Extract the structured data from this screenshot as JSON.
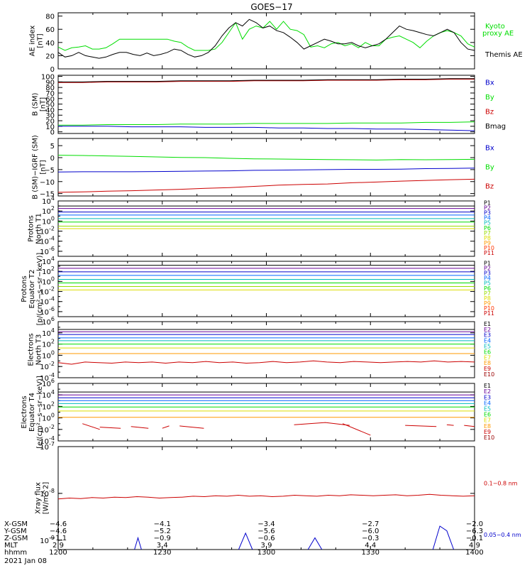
{
  "title": "GOES−17",
  "chart_data": [
    {
      "type": "line",
      "name": "ae",
      "ylabel": [
        "AE index",
        "[nT]"
      ],
      "ylim": [
        0,
        85
      ],
      "yticks": [
        0,
        20,
        40,
        60,
        80
      ],
      "series": [
        {
          "name": "Kyoto proxy AE",
          "label_lines": [
            "Kyoto",
            "proxy AE"
          ],
          "color": "#00dd00",
          "values": [
            33,
            28,
            32,
            33,
            35,
            30,
            30,
            32,
            38,
            45,
            45,
            45,
            45,
            45,
            45,
            45,
            45,
            42,
            40,
            33,
            28,
            28,
            28,
            30,
            40,
            55,
            70,
            45,
            60,
            65,
            62,
            72,
            60,
            72,
            60,
            58,
            52,
            33,
            35,
            32,
            38,
            40,
            35,
            38,
            32,
            40,
            35,
            35,
            45,
            48,
            50,
            45,
            40,
            32,
            42,
            50,
            55,
            58,
            55,
            50,
            38,
            33
          ]
        },
        {
          "name": "Themis AE",
          "label_lines": [
            "Themis AE"
          ],
          "color": "#000000",
          "values": [
            25,
            18,
            20,
            25,
            20,
            18,
            16,
            18,
            22,
            25,
            25,
            22,
            20,
            24,
            20,
            22,
            25,
            30,
            28,
            22,
            18,
            20,
            25,
            35,
            50,
            62,
            70,
            65,
            75,
            70,
            62,
            65,
            58,
            55,
            48,
            40,
            30,
            35,
            40,
            45,
            42,
            38,
            38,
            40,
            35,
            32,
            35,
            38,
            45,
            55,
            65,
            60,
            58,
            55,
            52,
            50,
            55,
            60,
            55,
            40,
            30,
            28
          ]
        }
      ]
    },
    {
      "type": "line",
      "name": "bsm",
      "ylabel": [
        "B (SM)",
        "[nT]"
      ],
      "ylim": [
        -3,
        102
      ],
      "yticks": [
        0,
        10,
        20,
        30,
        40,
        50,
        60,
        70,
        80,
        90,
        100
      ],
      "series": [
        {
          "name": "Bx",
          "color": "#0000cc",
          "values": [
            10,
            10,
            10,
            9,
            9,
            9,
            8,
            8,
            8,
            7,
            7,
            6,
            6,
            5,
            5,
            4,
            3,
            2
          ]
        },
        {
          "name": "By",
          "color": "#00dd00",
          "values": [
            12,
            12,
            13,
            13,
            13,
            14,
            14,
            14,
            15,
            15,
            15,
            15,
            16,
            16,
            16,
            17,
            17,
            18
          ]
        },
        {
          "name": "Bz",
          "color": "#cc0000",
          "values": [
            89,
            89,
            90,
            90,
            90,
            91,
            91,
            91,
            92,
            92,
            92,
            93,
            93,
            93,
            94,
            94,
            95,
            95
          ]
        },
        {
          "name": "Bmag",
          "color": "#000000",
          "values": [
            90,
            90,
            91,
            91,
            91,
            92,
            92,
            92,
            93,
            93,
            93,
            94,
            94,
            94,
            95,
            95,
            96,
            96
          ]
        }
      ]
    },
    {
      "type": "line",
      "name": "bigrf",
      "ylabel": [
        "B (SM)−IGRF (SM)",
        "[nT]"
      ],
      "ylim": [
        -16,
        8
      ],
      "yticks": [
        -15,
        -10,
        -5,
        0,
        5
      ],
      "series": [
        {
          "name": "Bx",
          "color": "#0000cc",
          "values": [
            -6.0,
            -5.9,
            -5.9,
            -5.9,
            -5.8,
            -5.7,
            -5.6,
            -5.5,
            -5.3,
            -5.2,
            -5.1,
            -5.0,
            -4.9,
            -4.9,
            -4.8,
            -4.6,
            -4.5,
            -4.4
          ]
        },
        {
          "name": "By",
          "color": "#00dd00",
          "values": [
            1.0,
            0.9,
            0.7,
            0.5,
            0.3,
            0.1,
            0.0,
            -0.3,
            -0.5,
            -0.6,
            -0.7,
            -0.8,
            -0.9,
            -1.0,
            -0.8,
            -0.9,
            -0.8,
            -0.7
          ]
        },
        {
          "name": "Bz",
          "color": "#cc0000",
          "values": [
            -14.5,
            -14.3,
            -14.0,
            -13.8,
            -13.5,
            -13.2,
            -12.8,
            -12.5,
            -12.0,
            -11.5,
            -11.2,
            -11.0,
            -10.5,
            -10.2,
            -9.8,
            -9.5,
            -9.2,
            -9.0
          ]
        }
      ]
    },
    {
      "type": "line",
      "name": "protons-t1",
      "ylabel": [
        "Protons",
        "North T1"
      ],
      "log": true,
      "ylim_exp": [
        -7,
        4
      ],
      "ytick_exps": [
        -6,
        -4,
        -2,
        0,
        2,
        4
      ],
      "series": [
        {
          "name": "P1",
          "color": "#000000",
          "exp": 3.0
        },
        {
          "name": "P2",
          "color": "#660099",
          "exp": 2.5
        },
        {
          "name": "P3",
          "color": "#0000cc",
          "exp": 1.8
        },
        {
          "name": "P4",
          "color": "#0066ff",
          "exp": 1.2
        },
        {
          "name": "P5",
          "color": "#00bbbb",
          "exp": 0.5
        },
        {
          "name": "P6",
          "color": "#00dd00",
          "exp": -0.2
        },
        {
          "name": "P7",
          "color": "#99dd00",
          "exp": -1.0
        },
        {
          "name": "P8",
          "color": "#dddd00",
          "exp": -1.5
        },
        {
          "name": "P9",
          "color": "#ff9900",
          "exp": null
        },
        {
          "name": "P10",
          "color": "#ff3300",
          "exp": null
        },
        {
          "name": "P11",
          "color": "#cc0000",
          "exp": null
        }
      ]
    },
    {
      "type": "line",
      "name": "protons-t2",
      "ylabel": [
        "Protons",
        "Equator T2",
        "[p/(cm²−s−sr−keV)]"
      ],
      "log": true,
      "ylim_exp": [
        -7,
        4
      ],
      "ytick_exps": [
        -6,
        -4,
        -2,
        0,
        2,
        4
      ],
      "series": [
        {
          "name": "P1",
          "color": "#000000",
          "exp": 3.2
        },
        {
          "name": "P2",
          "color": "#660099",
          "exp": 2.6
        },
        {
          "name": "P3",
          "color": "#0000cc",
          "exp": 1.9
        },
        {
          "name": "P4",
          "color": "#0066ff",
          "exp": 1.2
        },
        {
          "name": "P5",
          "color": "#00bbbb",
          "exp": 0.4
        },
        {
          "name": "P6",
          "color": "#00dd00",
          "exp": -0.3
        },
        {
          "name": "P7",
          "color": "#99dd00",
          "exp": -1.0
        },
        {
          "name": "P8",
          "color": "#dddd00",
          "exp": -1.7
        },
        {
          "name": "P9",
          "color": "#ff9900",
          "exp": null
        },
        {
          "name": "P10",
          "color": "#ff3300",
          "exp": null
        },
        {
          "name": "P11",
          "color": "#cc0000",
          "exp": null
        }
      ]
    },
    {
      "type": "line",
      "name": "electrons-t3",
      "ylabel": [
        "Electrons",
        "North T3"
      ],
      "log": true,
      "ylim_exp": [
        -4,
        6
      ],
      "ytick_exps": [
        -4,
        -2,
        0,
        2,
        4,
        6
      ],
      "series": [
        {
          "name": "E1",
          "color": "#000000",
          "exp": 4.6
        },
        {
          "name": "E2",
          "color": "#660099",
          "exp": 4.2
        },
        {
          "name": "E3",
          "color": "#0000cc",
          "exp": 3.7
        },
        {
          "name": "E4",
          "color": "#0066ff",
          "exp": 3.1
        },
        {
          "name": "E5",
          "color": "#00bbbb",
          "exp": 2.6
        },
        {
          "name": "E6",
          "color": "#00dd00",
          "exp": 2.0
        },
        {
          "name": "E7",
          "color": "#dddd00",
          "exp": 1.3
        },
        {
          "name": "E8",
          "color": "#ff9900",
          "exp": 0.3
        },
        {
          "name": "E9",
          "color": "#cc0000",
          "values": [
            -1.3,
            -1.6,
            -1.2,
            -1.3,
            -1.4,
            -1.2,
            -1.3,
            -1.2,
            -1.4,
            -1.2,
            -1.3,
            -1.1,
            -1.3,
            -1.2,
            -1.4,
            -1.3,
            -1.1,
            -1.3,
            -1.2,
            -1.0,
            -1.2,
            -1.3,
            -1.1,
            -1.2,
            -1.3,
            -1.2,
            -1.1,
            -1.2,
            -1.0,
            -1.2,
            -1.1,
            -1.2
          ]
        },
        {
          "name": "E10",
          "color": "#990000",
          "exp": null
        }
      ]
    },
    {
      "type": "line",
      "name": "electrons-t4",
      "ylabel": [
        "Electrons",
        "Equator T4",
        "[e/(cm²−s−sr−keV)]"
      ],
      "log": true,
      "ylim_exp": [
        -4,
        6
      ],
      "ytick_exps": [
        -4,
        -2,
        0,
        2,
        4,
        6
      ],
      "series": [
        {
          "name": "E1",
          "color": "#000000",
          "exp": 4.5
        },
        {
          "name": "E2",
          "color": "#660099",
          "exp": 4.0
        },
        {
          "name": "E3",
          "color": "#0000cc",
          "exp": 3.5
        },
        {
          "name": "E4",
          "color": "#0066ff",
          "exp": 3.0
        },
        {
          "name": "E5",
          "color": "#00bbbb",
          "exp": 2.5
        },
        {
          "name": "E6",
          "color": "#00dd00",
          "exp": 1.9
        },
        {
          "name": "E7",
          "color": "#dddd00",
          "exp": 1.2
        },
        {
          "name": "E8",
          "color": "#ff9900",
          "exp": 0.1
        },
        {
          "name": "E9",
          "color": "#cc0000",
          "segments": [
            [
              [
                1207,
                -1.0
              ],
              [
                1212,
                -2.0
              ]
            ],
            [
              [
                1212,
                -1.6
              ],
              [
                1218,
                -1.8
              ]
            ],
            [
              [
                1221,
                -1.5
              ],
              [
                1226,
                -1.8
              ]
            ],
            [
              [
                1230,
                -1.8
              ],
              [
                1232,
                -1.4
              ]
            ],
            [
              [
                1235,
                -1.4
              ],
              [
                1242,
                -1.8
              ]
            ],
            [
              [
                1308,
                -1.2
              ],
              [
                1317,
                -0.8
              ],
              [
                1324,
                -1.3
              ]
            ],
            [
              [
                1322,
                -1.0
              ],
              [
                1330,
                -3.0
              ]
            ],
            [
              [
                1340,
                -1.3
              ],
              [
                1349,
                -1.5
              ]
            ],
            [
              [
                1352,
                -1.2
              ],
              [
                1354,
                -1.3
              ]
            ],
            [
              [
                1357,
                -1.3
              ],
              [
                1360,
                -1.5
              ]
            ]
          ]
        },
        {
          "name": "E10",
          "color": "#990000",
          "exp": null
        }
      ]
    },
    {
      "type": "line",
      "name": "xray",
      "ylabel": [
        "Xray flux",
        "[W/m^2]"
      ],
      "log": true,
      "ylim_exp": [
        -9.2,
        -7
      ],
      "ytick_exps": [
        -9,
        -8,
        -7
      ],
      "series": [
        {
          "name": "0.1−0.8 nm",
          "color": "#cc0000",
          "values": [
            -8.12,
            -8.1,
            -8.11,
            -8.09,
            -8.1,
            -8.08,
            -8.09,
            -8.07,
            -8.08,
            -8.1,
            -8.09,
            -8.08,
            -8.06,
            -8.07,
            -8.05,
            -8.06,
            -8.04,
            -8.06,
            -8.05,
            -8.07,
            -8.06,
            -8.04,
            -8.05,
            -8.06,
            -8.04,
            -8.05,
            -8.03,
            -8.04,
            -8.05,
            -8.04,
            -8.03,
            -8.05,
            -8.04,
            -8.02,
            -8.04,
            -8.05,
            -8.06,
            -8.05
          ]
        },
        {
          "name": "0.05−0.4 nm",
          "color": "#0000cc",
          "segments": [
            [
              [
                1222,
                -9.2
              ],
              [
                1223,
                -8.95
              ],
              [
                1224,
                -9.2
              ]
            ],
            [
              [
                1252,
                -9.2
              ],
              [
                1254,
                -8.85
              ],
              [
                1256,
                -9.2
              ]
            ],
            [
              [
                1312,
                -9.2
              ],
              [
                1314,
                -8.95
              ],
              [
                1316,
                -9.2
              ]
            ],
            [
              [
                1348,
                -9.2
              ],
              [
                1350,
                -8.7
              ],
              [
                1352,
                -8.8
              ],
              [
                1354,
                -9.2
              ]
            ],
            [
              [
                1396,
                -9.2
              ],
              [
                1397,
                -8.95
              ],
              [
                1398,
                -9.2
              ]
            ]
          ]
        }
      ]
    }
  ],
  "x_axis": {
    "min": 1200,
    "max": 1400,
    "rows": [
      {
        "label": "X-GSM",
        "values": [
          "−4.6",
          "−4.1",
          "−3.4",
          "−2.7",
          "−2.0"
        ]
      },
      {
        "label": "Y-GSM",
        "values": [
          "−4.6",
          "−5.2",
          "−5.6",
          "−6.0",
          "−6.3"
        ]
      },
      {
        "label": "Z-GSM",
        "values": [
          "−1.1",
          "−0.9",
          "−0.6",
          "−0.3",
          "−0.1"
        ]
      },
      {
        "label": "MLT",
        "values": [
          "2.9",
          "3.4",
          "3.9",
          "4.4",
          "4.9"
        ]
      },
      {
        "label": "hhmm",
        "values": [
          "1200",
          "1230",
          "1300",
          "1330",
          "1400"
        ]
      }
    ],
    "date": "2021 Jan 08"
  }
}
